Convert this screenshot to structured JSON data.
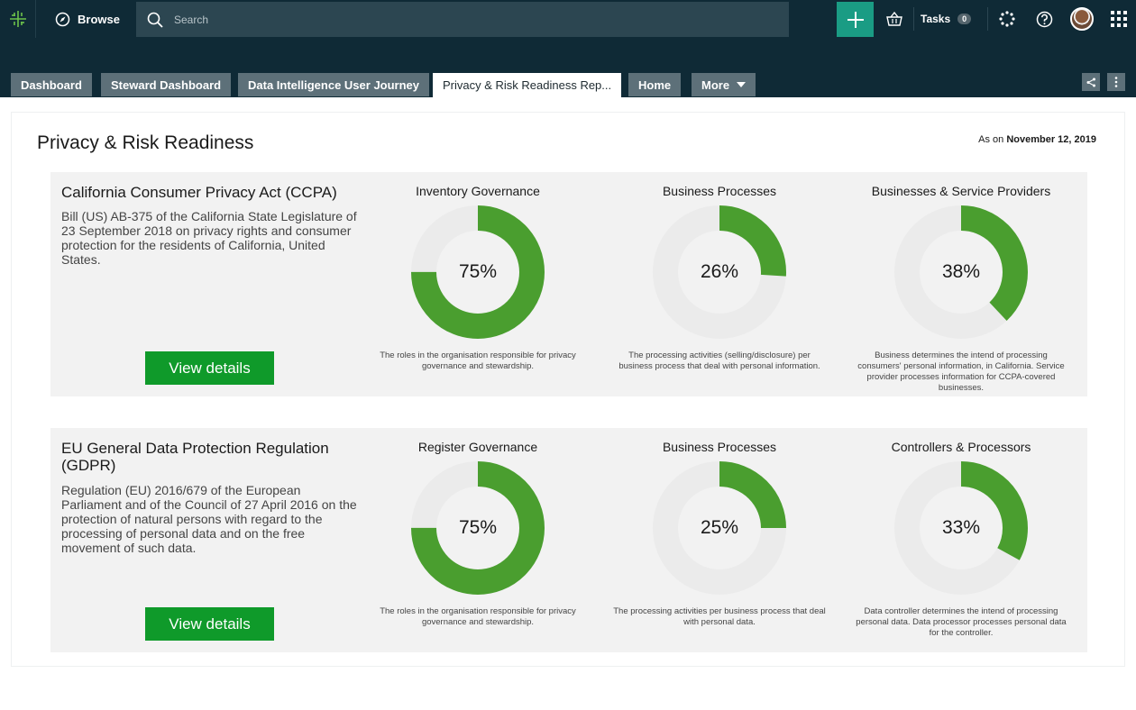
{
  "header": {
    "browse_label": "Browse",
    "search_placeholder": "Search",
    "tasks_label": "Tasks",
    "tasks_count": "0"
  },
  "tabs": [
    {
      "label": "Dashboard"
    },
    {
      "label": "Steward Dashboard"
    },
    {
      "label": "Data Intelligence User Journey"
    },
    {
      "label": "Privacy & Risk Readiness Rep..."
    },
    {
      "label": "Home"
    },
    {
      "label": "More"
    }
  ],
  "page": {
    "title": "Privacy & Risk Readiness",
    "as_on_prefix": "As on",
    "as_on_date": "November 12, 2019"
  },
  "cards": [
    {
      "title": "California Consumer Privacy Act (CCPA)",
      "description": "Bill (US) AB-375 of the California State Legislature of 23 September 2018 on privacy rights and consumer protection for the residents of California, United States.",
      "button_label": "View details",
      "metrics": [
        {
          "title": "Inventory Governance",
          "value": 75,
          "label": "75%",
          "description": "The roles in the organisation responsible for privacy governance and stewardship."
        },
        {
          "title": "Business Processes",
          "value": 26,
          "label": "26%",
          "description": "The processing activities (selling/disclosure) per business process that deal with personal information."
        },
        {
          "title": "Businesses & Service Providers",
          "value": 38,
          "label": "38%",
          "description": "Business determines the intend of processing consumers' personal information, in California. Service provider processes information for CCPA-covered businesses."
        }
      ]
    },
    {
      "title": "EU General Data Protection Regulation (GDPR)",
      "description": "Regulation (EU) 2016/679 of the European Parliament and of the Council of 27 April 2016 on the protection of natural persons with regard to the processing of personal data and on the free movement of such data.",
      "button_label": "View details",
      "metrics": [
        {
          "title": "Register Governance",
          "value": 75,
          "label": "75%",
          "description": "The roles in the organisation responsible for privacy governance and stewardship."
        },
        {
          "title": "Business Processes",
          "value": 25,
          "label": "25%",
          "description": "The processing activities per business process that deal with personal data."
        },
        {
          "title": "Controllers & Processors",
          "value": 33,
          "label": "33%",
          "description": "Data controller determines the intend of processing personal data. Data processor processes personal data for the controller."
        }
      ]
    }
  ],
  "colors": {
    "donut_fill": "#4a9e2f",
    "donut_track": "#ebebeb",
    "button": "#0f9a2a",
    "topbar": "#0f2a36",
    "accent_plus": "#1a9c84"
  }
}
